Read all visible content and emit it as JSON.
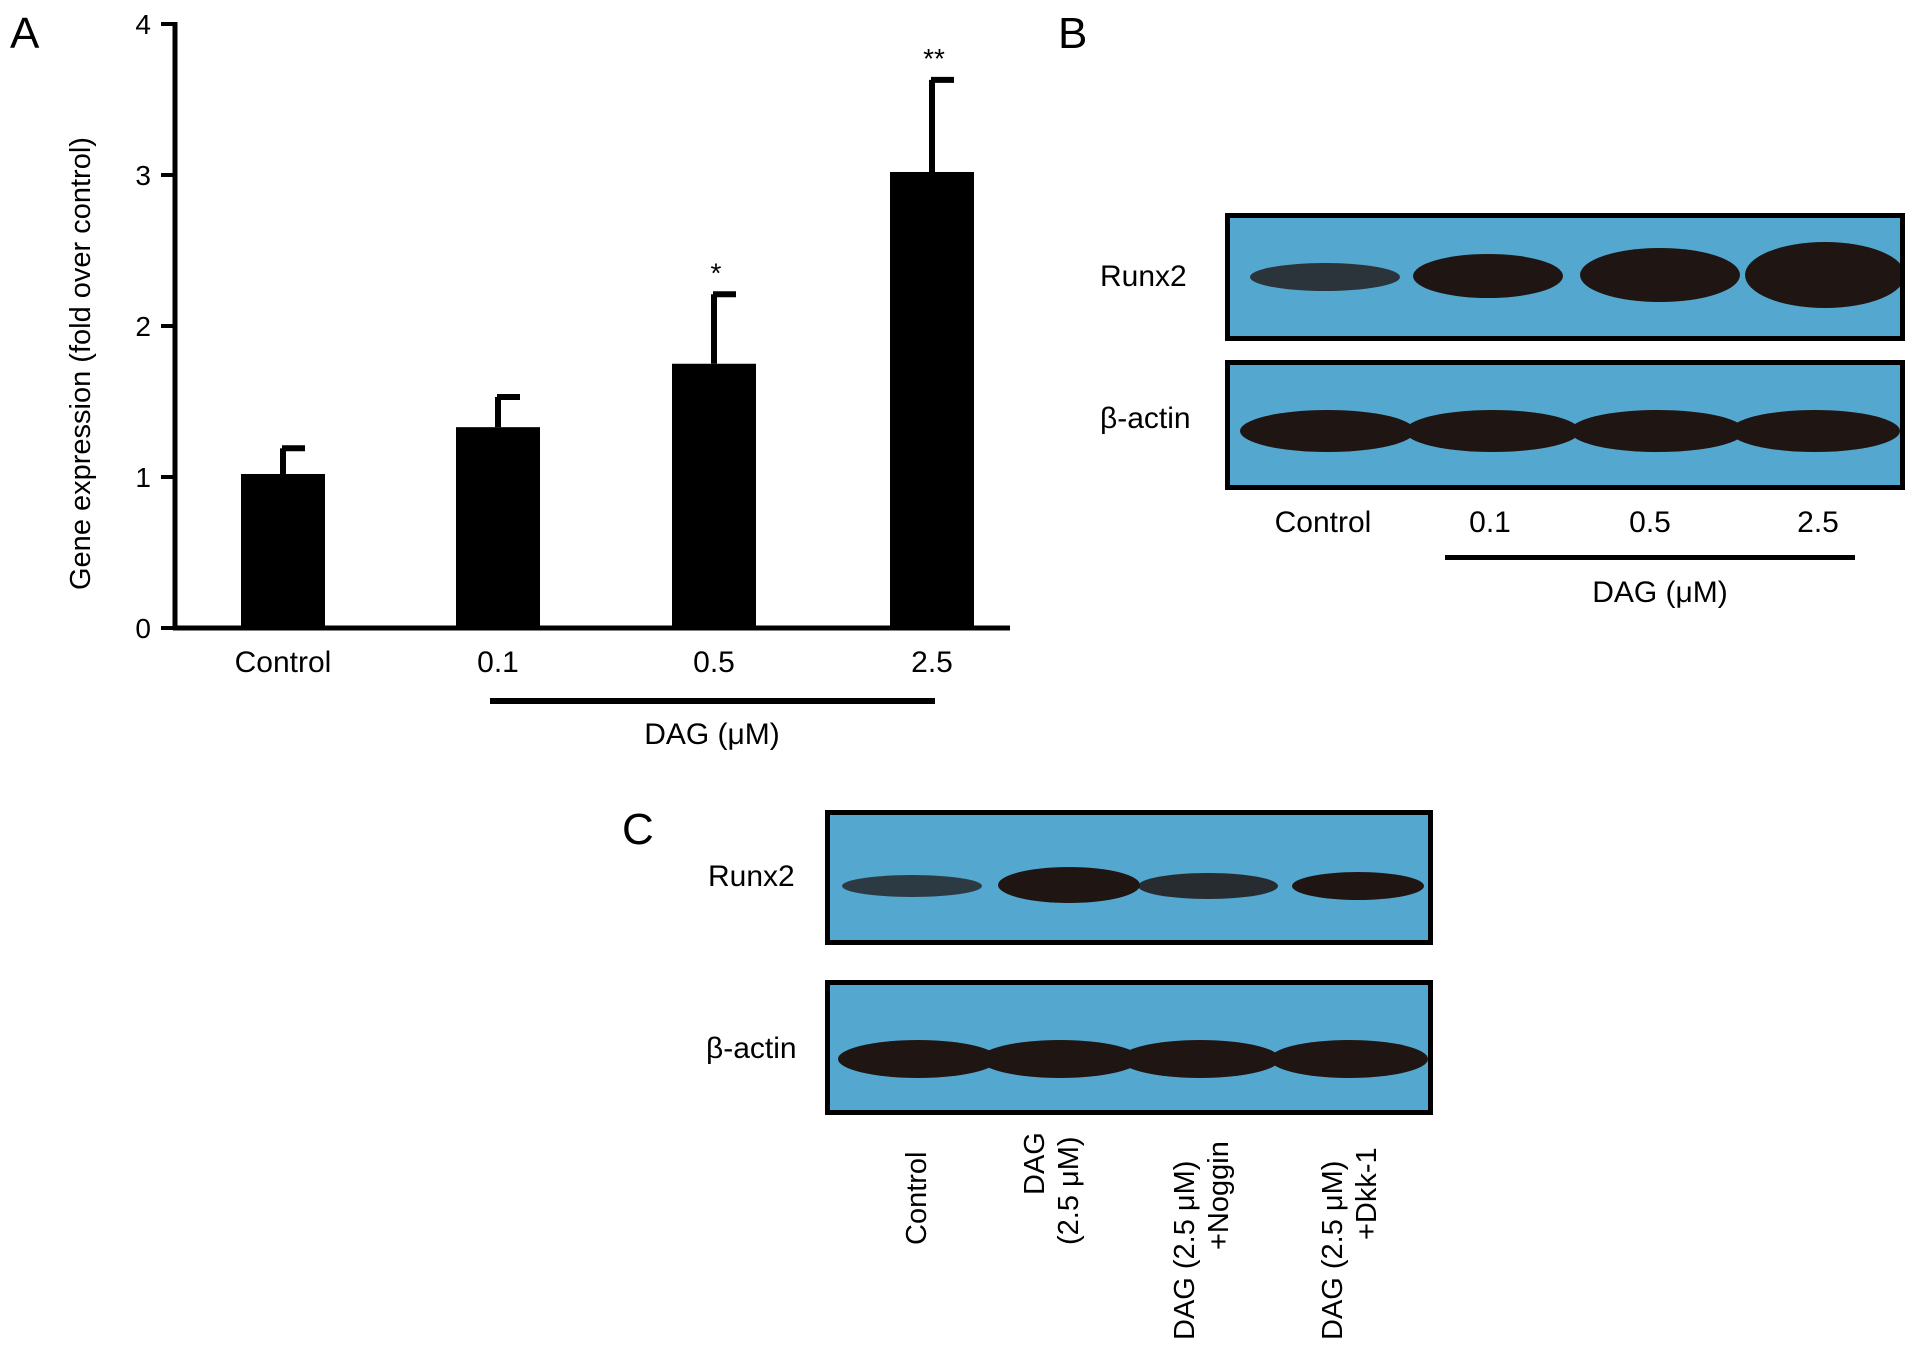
{
  "panels": {
    "a": "A",
    "b": "B",
    "c": "C"
  },
  "chart_data": {
    "type": "bar",
    "title": "",
    "ylabel": "Gene expression (fold over control)",
    "xlabel": "DAG (μM)",
    "categories": [
      "Control",
      "0.1",
      "0.5",
      "2.5"
    ],
    "values": [
      1.02,
      1.33,
      1.75,
      3.02
    ],
    "error_upper": [
      1.19,
      1.53,
      2.21,
      3.63
    ],
    "significance": [
      "",
      "",
      "*",
      "**"
    ],
    "ylim": [
      0,
      4
    ],
    "yticks": [
      "0",
      "1",
      "2",
      "3",
      "4"
    ],
    "bar_color": "#000000"
  },
  "blot_b": {
    "rows": [
      "Runx2",
      "β-actin"
    ],
    "lanes": [
      "Control",
      "0.1",
      "0.5",
      "2.5"
    ],
    "group_label": "DAG (μM)",
    "band_color": "#1f1614",
    "membrane_color": "#54a8cf"
  },
  "blot_c": {
    "rows": [
      "Runx2",
      "β-actin"
    ],
    "lanes": [
      {
        "line1": "Control",
        "line2": ""
      },
      {
        "line1": "DAG",
        "line2": "(2.5 μM)"
      },
      {
        "line1": "DAG (2.5 μM)",
        "line2": "+Noggin"
      },
      {
        "line1": "DAG (2.5 μM)",
        "line2": "+Dkk-1"
      }
    ]
  }
}
